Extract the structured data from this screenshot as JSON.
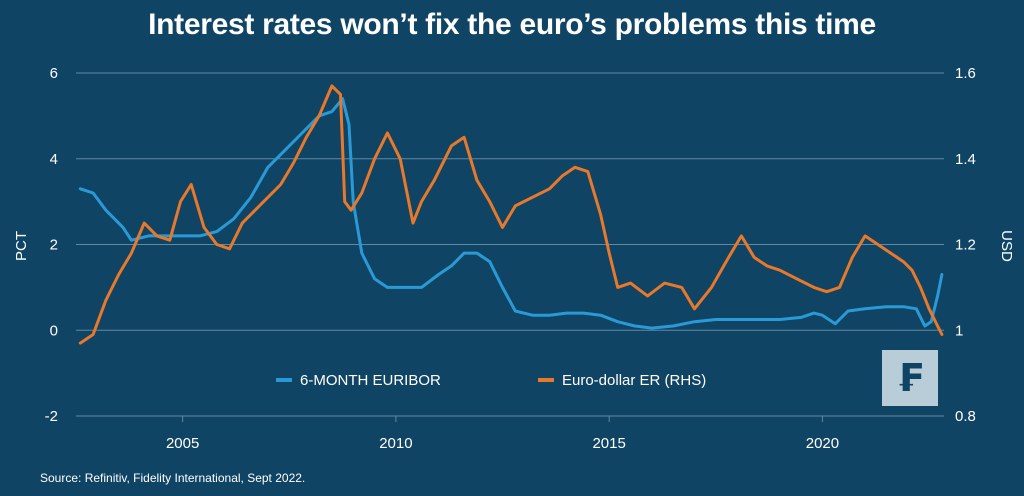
{
  "chart_data": {
    "type": "line",
    "title": "Interest rates won’t fix the euro’s problems this time",
    "ylabel": "PCT",
    "y2label": "USD",
    "ylim": [
      -2,
      6
    ],
    "y2lim": [
      0.8,
      1.6
    ],
    "xlim": [
      2002.5,
      2022.85
    ],
    "y_ticks": [
      "6",
      "4",
      "2",
      "0",
      "-2"
    ],
    "y2_ticks": [
      "1.6",
      "1.4",
      "1.2",
      "1",
      "0.8"
    ],
    "x_ticks": [
      "2005",
      "2010",
      "2015",
      "2020"
    ],
    "grid": "horizontal",
    "legend_position": "bottom-center",
    "series": [
      {
        "name": "6-MONTH EURIBOR",
        "axis": "left",
        "color": "#2a9ad6",
        "x": [
          2002.6,
          2002.9,
          2003.2,
          2003.6,
          2003.8,
          2004.2,
          2004.6,
          2005.0,
          2005.4,
          2005.8,
          2006.2,
          2006.6,
          2007.0,
          2007.4,
          2007.8,
          2008.2,
          2008.5,
          2008.75,
          2008.9,
          2009.0,
          2009.2,
          2009.5,
          2009.8,
          2010.2,
          2010.6,
          2011.0,
          2011.3,
          2011.6,
          2011.9,
          2012.2,
          2012.5,
          2012.8,
          2013.2,
          2013.6,
          2014.0,
          2014.4,
          2014.8,
          2015.2,
          2015.6,
          2016.0,
          2016.5,
          2017.0,
          2017.5,
          2018.0,
          2018.5,
          2019.0,
          2019.5,
          2019.8,
          2020.0,
          2020.3,
          2020.6,
          2021.0,
          2021.5,
          2021.9,
          2022.2,
          2022.4,
          2022.55,
          2022.7,
          2022.8
        ],
        "values": [
          3.3,
          3.2,
          2.8,
          2.4,
          2.1,
          2.2,
          2.2,
          2.2,
          2.2,
          2.3,
          2.6,
          3.1,
          3.8,
          4.2,
          4.6,
          5.0,
          5.1,
          5.4,
          4.8,
          3.0,
          1.8,
          1.2,
          1.0,
          1.0,
          1.0,
          1.3,
          1.5,
          1.8,
          1.8,
          1.6,
          1.0,
          0.45,
          0.35,
          0.35,
          0.4,
          0.4,
          0.35,
          0.2,
          0.1,
          0.05,
          0.1,
          0.2,
          0.25,
          0.25,
          0.25,
          0.25,
          0.3,
          0.4,
          0.35,
          0.15,
          0.45,
          0.5,
          0.55,
          0.55,
          0.5,
          0.1,
          0.2,
          0.8,
          1.3
        ]
      },
      {
        "name": "Euro-dollar ER (RHS)",
        "axis": "right",
        "color": "#e8782a",
        "x": [
          2002.6,
          2002.9,
          2003.2,
          2003.5,
          2003.8,
          2004.1,
          2004.4,
          2004.7,
          2004.95,
          2005.2,
          2005.5,
          2005.8,
          2006.1,
          2006.4,
          2006.7,
          2007.0,
          2007.3,
          2007.6,
          2007.9,
          2008.2,
          2008.5,
          2008.7,
          2008.8,
          2008.95,
          2009.2,
          2009.5,
          2009.8,
          2010.1,
          2010.4,
          2010.6,
          2010.9,
          2011.3,
          2011.6,
          2011.9,
          2012.2,
          2012.5,
          2012.8,
          2013.2,
          2013.6,
          2013.9,
          2014.2,
          2014.5,
          2014.8,
          2015.0,
          2015.2,
          2015.5,
          2015.9,
          2016.3,
          2016.7,
          2017.0,
          2017.4,
          2017.8,
          2018.1,
          2018.4,
          2018.7,
          2019.0,
          2019.4,
          2019.8,
          2020.1,
          2020.4,
          2020.7,
          2021.0,
          2021.3,
          2021.6,
          2021.9,
          2022.1,
          2022.3,
          2022.5,
          2022.7,
          2022.8
        ],
        "values": [
          0.97,
          0.99,
          1.07,
          1.13,
          1.18,
          1.25,
          1.22,
          1.21,
          1.3,
          1.34,
          1.24,
          1.2,
          1.19,
          1.25,
          1.28,
          1.31,
          1.34,
          1.39,
          1.45,
          1.5,
          1.57,
          1.55,
          1.3,
          1.28,
          1.32,
          1.4,
          1.46,
          1.4,
          1.25,
          1.3,
          1.35,
          1.43,
          1.45,
          1.35,
          1.3,
          1.24,
          1.29,
          1.31,
          1.33,
          1.36,
          1.38,
          1.37,
          1.27,
          1.18,
          1.1,
          1.11,
          1.08,
          1.11,
          1.1,
          1.05,
          1.1,
          1.17,
          1.22,
          1.17,
          1.15,
          1.14,
          1.12,
          1.1,
          1.09,
          1.1,
          1.17,
          1.22,
          1.2,
          1.18,
          1.16,
          1.14,
          1.1,
          1.05,
          1.01,
          0.99
        ]
      }
    ]
  },
  "source_text": "Source: Refinitiv, Fidelity International, Sept 2022.",
  "logo_glyph": "₣",
  "colors": {
    "background": "#0f4464",
    "grid": "#5f8aa3",
    "euribor": "#2a9ad6",
    "eur_usd": "#e8782a",
    "logo_bg": "#b9cdd8"
  }
}
